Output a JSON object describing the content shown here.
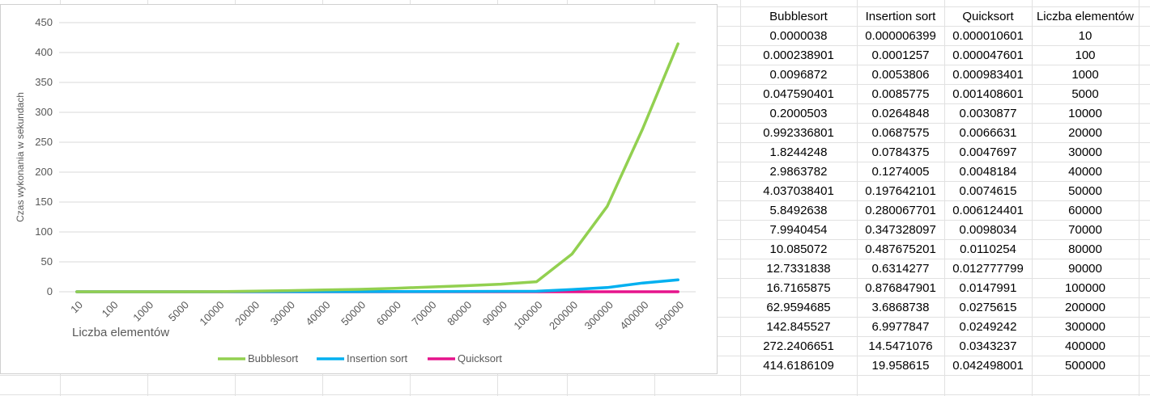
{
  "chart_data": {
    "type": "line",
    "title": "",
    "xlabel": "Liczba elementów",
    "ylabel": "Czas wykonania w sekundach",
    "ylim": [
      0,
      450
    ],
    "yticks": [
      0,
      50,
      100,
      150,
      200,
      250,
      300,
      350,
      400,
      450
    ],
    "grid": true,
    "legend_position": "bottom",
    "categories": [
      "10",
      "100",
      "1000",
      "5000",
      "10000",
      "20000",
      "30000",
      "40000",
      "50000",
      "60000",
      "70000",
      "80000",
      "90000",
      "100000",
      "200000",
      "300000",
      "400000",
      "500000"
    ],
    "series": [
      {
        "name": "Bubblesort",
        "color": "#92d050",
        "values": [
          3.8e-06,
          0.000238901,
          0.0096872,
          0.047590401,
          0.2000503,
          0.992336801,
          1.8244248,
          2.9863782,
          4.037038401,
          5.8492638,
          7.9940454,
          10.085072,
          12.7331838,
          16.7165875,
          62.9594685,
          142.845527,
          272.2406651,
          414.6186109
        ]
      },
      {
        "name": "Insertion sort",
        "color": "#00b0f0",
        "values": [
          6.399e-06,
          0.0001257,
          0.0053806,
          0.0085775,
          0.0264848,
          0.0687575,
          0.0784375,
          0.1274005,
          0.197642101,
          0.280067701,
          0.347328097,
          0.487675201,
          0.6314277,
          0.876847901,
          3.6868738,
          6.9977847,
          14.5471076,
          19.958615
        ]
      },
      {
        "name": "Quicksort",
        "color": "#e6138c",
        "values": [
          1.0601e-05,
          4.7601e-05,
          0.000983401,
          0.001408601,
          0.0030877,
          0.0066631,
          0.0047697,
          0.0048184,
          0.0074615,
          0.006124401,
          0.0098034,
          0.0110254,
          0.012777799,
          0.0147991,
          0.0275615,
          0.0249242,
          0.0343237,
          0.042498001
        ]
      }
    ]
  },
  "table": {
    "headers": [
      "Bubblesort",
      "Insertion sort",
      "Quicksort",
      "Liczba elementów"
    ],
    "rows": [
      [
        "0.0000038",
        "0.000006399",
        "0.000010601",
        "10"
      ],
      [
        "0.000238901",
        "0.0001257",
        "0.000047601",
        "100"
      ],
      [
        "0.0096872",
        "0.0053806",
        "0.000983401",
        "1000"
      ],
      [
        "0.047590401",
        "0.0085775",
        "0.001408601",
        "5000"
      ],
      [
        "0.2000503",
        "0.0264848",
        "0.0030877",
        "10000"
      ],
      [
        "0.992336801",
        "0.0687575",
        "0.0066631",
        "20000"
      ],
      [
        "1.8244248",
        "0.0784375",
        "0.0047697",
        "30000"
      ],
      [
        "2.9863782",
        "0.1274005",
        "0.0048184",
        "40000"
      ],
      [
        "4.037038401",
        "0.197642101",
        "0.0074615",
        "50000"
      ],
      [
        "5.8492638",
        "0.280067701",
        "0.006124401",
        "60000"
      ],
      [
        "7.9940454",
        "0.347328097",
        "0.0098034",
        "70000"
      ],
      [
        "10.085072",
        "0.487675201",
        "0.0110254",
        "80000"
      ],
      [
        "12.7331838",
        "0.6314277",
        "0.012777799",
        "90000"
      ],
      [
        "16.7165875",
        "0.876847901",
        "0.0147991",
        "100000"
      ],
      [
        "62.9594685",
        "3.6868738",
        "0.0275615",
        "200000"
      ],
      [
        "142.845527",
        "6.9977847",
        "0.0249242",
        "300000"
      ],
      [
        "272.2406651",
        "14.5471076",
        "0.0343237",
        "400000"
      ],
      [
        "414.6186109",
        "19.958615",
        "0.042498001",
        "500000"
      ]
    ]
  }
}
